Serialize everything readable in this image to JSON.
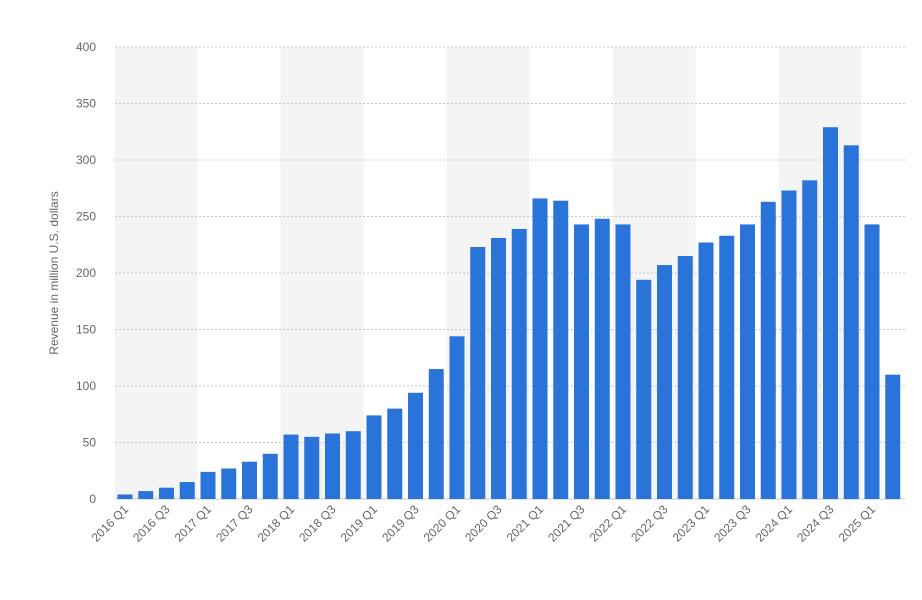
{
  "chart_data": {
    "type": "bar",
    "title": "",
    "xlabel": "",
    "ylabel": "Revenue in million U.S. dollars",
    "ylim": [
      0,
      400
    ],
    "yticks": [
      0,
      50,
      100,
      150,
      200,
      250,
      300,
      350,
      400
    ],
    "grid": true,
    "legend": "none",
    "bar_color": "#2a73d9",
    "categories": [
      "2016 Q1",
      "2016 Q2",
      "2016 Q3",
      "2016 Q4",
      "2017 Q1",
      "2017 Q2",
      "2017 Q3",
      "2017 Q4",
      "2018 Q1",
      "2018 Q2",
      "2018 Q3",
      "2018 Q4",
      "2019 Q1",
      "2019 Q2",
      "2019 Q3",
      "2019 Q4",
      "2020 Q1",
      "2020 Q2",
      "2020 Q3",
      "2020 Q4",
      "2021 Q1",
      "2021 Q2",
      "2021 Q3",
      "2021 Q4",
      "2022 Q1",
      "2022 Q2",
      "2022 Q3",
      "2022 Q4",
      "2023 Q1",
      "2023 Q2",
      "2023 Q3",
      "2023 Q4",
      "2024 Q1",
      "2024 Q2",
      "2024 Q3",
      "2024 Q4",
      "2025 Q1",
      "2025 Q2"
    ],
    "xtick_labels": [
      "2016 Q1",
      "2016 Q3",
      "2017 Q1",
      "2017 Q3",
      "2018 Q1",
      "2018 Q3",
      "2019 Q1",
      "2019 Q3",
      "2020 Q1",
      "2020 Q3",
      "2021 Q1",
      "2021 Q3",
      "2022 Q1",
      "2022 Q3",
      "2023 Q1",
      "2023 Q3",
      "2024 Q1",
      "2024 Q3",
      "2025 Q1"
    ],
    "values": [
      4,
      7,
      10,
      15,
      24,
      27,
      33,
      40,
      57,
      55,
      58,
      60,
      74,
      80,
      94,
      115,
      144,
      223,
      231,
      239,
      266,
      264,
      243,
      248,
      243,
      194,
      207,
      215,
      227,
      233,
      243,
      263,
      273,
      282,
      329,
      313,
      243,
      110
    ]
  }
}
